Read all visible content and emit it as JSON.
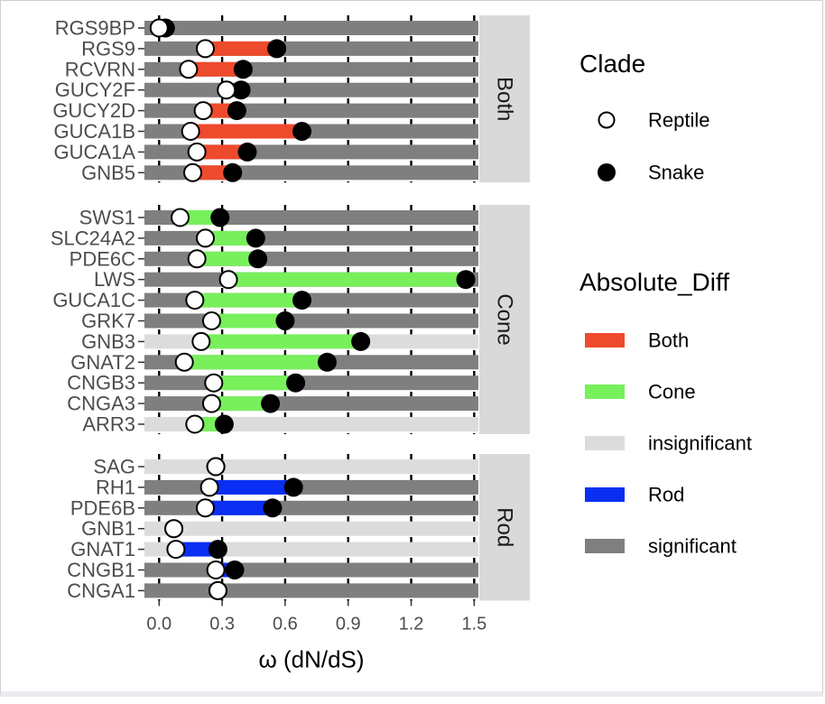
{
  "chart_data": {
    "type": "dumbbell",
    "xlabel": "ω (dN/dS)",
    "x_ticks": [
      "0.0",
      "0.3",
      "0.6",
      "0.9",
      "1.2",
      "1.5"
    ],
    "x_tick_values": [
      0.0,
      0.3,
      0.6,
      0.9,
      1.2,
      1.5
    ],
    "xlim": [
      -0.07,
      1.52
    ],
    "grid": true,
    "legend_placement": "right",
    "colors": {
      "Both": "#ee4a2c",
      "Cone": "#77f05c",
      "insignificant": "#dcdcdc",
      "Rod": "#0a2ef2",
      "significant": "#7f7f7f"
    },
    "legends": {
      "clade": {
        "title": "Clade",
        "items": [
          {
            "label": "Reptile",
            "marker": "open-circle"
          },
          {
            "label": "Snake",
            "marker": "filled-circle"
          }
        ]
      },
      "diff": {
        "title": "Absolute_Diff",
        "items": [
          {
            "label": "Both",
            "key": "Both"
          },
          {
            "label": "Cone",
            "key": "Cone"
          },
          {
            "label": "insignificant",
            "key": "insignificant"
          },
          {
            "label": "Rod",
            "key": "Rod"
          },
          {
            "label": "significant",
            "key": "significant"
          }
        ]
      }
    },
    "panels": [
      {
        "name": "Both",
        "genes": [
          {
            "gene": "RGS9BP",
            "reptile": 0.0,
            "snake": 0.03,
            "background": "significant",
            "diff": null
          },
          {
            "gene": "RGS9",
            "reptile": 0.22,
            "snake": 0.56,
            "background": "significant",
            "diff": "Both"
          },
          {
            "gene": "RCVRN",
            "reptile": 0.14,
            "snake": 0.4,
            "background": "significant",
            "diff": "Both"
          },
          {
            "gene": "GUCY2F",
            "reptile": 0.32,
            "snake": 0.39,
            "background": "significant",
            "diff": null
          },
          {
            "gene": "GUCY2D",
            "reptile": 0.21,
            "snake": 0.37,
            "background": "significant",
            "diff": "Both"
          },
          {
            "gene": "GUCA1B",
            "reptile": 0.15,
            "snake": 0.68,
            "background": "significant",
            "diff": "Both"
          },
          {
            "gene": "GUCA1A",
            "reptile": 0.18,
            "snake": 0.42,
            "background": "significant",
            "diff": "Both"
          },
          {
            "gene": "GNB5",
            "reptile": 0.16,
            "snake": 0.35,
            "background": "significant",
            "diff": "Both"
          }
        ]
      },
      {
        "name": "Cone",
        "genes": [
          {
            "gene": "SWS1",
            "reptile": 0.1,
            "snake": 0.29,
            "background": "significant",
            "diff": "Cone"
          },
          {
            "gene": "SLC24A2",
            "reptile": 0.22,
            "snake": 0.46,
            "background": "significant",
            "diff": "Cone"
          },
          {
            "gene": "PDE6C",
            "reptile": 0.18,
            "snake": 0.47,
            "background": "significant",
            "diff": "Cone"
          },
          {
            "gene": "LWS",
            "reptile": 0.33,
            "snake": 1.46,
            "background": "significant",
            "diff": "Cone"
          },
          {
            "gene": "GUCA1C",
            "reptile": 0.17,
            "snake": 0.68,
            "background": "significant",
            "diff": "Cone"
          },
          {
            "gene": "GRK7",
            "reptile": 0.25,
            "snake": 0.6,
            "background": "significant",
            "diff": "Cone"
          },
          {
            "gene": "GNB3",
            "reptile": 0.2,
            "snake": 0.96,
            "background": "insignificant",
            "diff": "Cone"
          },
          {
            "gene": "GNAT2",
            "reptile": 0.12,
            "snake": 0.8,
            "background": "significant",
            "diff": "Cone"
          },
          {
            "gene": "CNGB3",
            "reptile": 0.26,
            "snake": 0.65,
            "background": "significant",
            "diff": "Cone"
          },
          {
            "gene": "CNGA3",
            "reptile": 0.25,
            "snake": 0.53,
            "background": "significant",
            "diff": "Cone"
          },
          {
            "gene": "ARR3",
            "reptile": 0.17,
            "snake": 0.31,
            "background": "insignificant",
            "diff": "Cone"
          }
        ]
      },
      {
        "name": "Rod",
        "genes": [
          {
            "gene": "SAG",
            "reptile": 0.27,
            "snake": 0.27,
            "background": "insignificant",
            "diff": null
          },
          {
            "gene": "RH1",
            "reptile": 0.24,
            "snake": 0.64,
            "background": "significant",
            "diff": "Rod"
          },
          {
            "gene": "PDE6B",
            "reptile": 0.22,
            "snake": 0.54,
            "background": "significant",
            "diff": "Rod"
          },
          {
            "gene": "GNB1",
            "reptile": 0.07,
            "snake": 0.07,
            "background": "insignificant",
            "diff": null
          },
          {
            "gene": "GNAT1",
            "reptile": 0.08,
            "snake": 0.28,
            "background": "insignificant",
            "diff": "Rod"
          },
          {
            "gene": "CNGB1",
            "reptile": 0.27,
            "snake": 0.36,
            "background": "significant",
            "diff": "Rod"
          },
          {
            "gene": "CNGA1",
            "reptile": 0.28,
            "snake": 0.28,
            "background": "significant",
            "diff": null
          }
        ]
      }
    ]
  }
}
